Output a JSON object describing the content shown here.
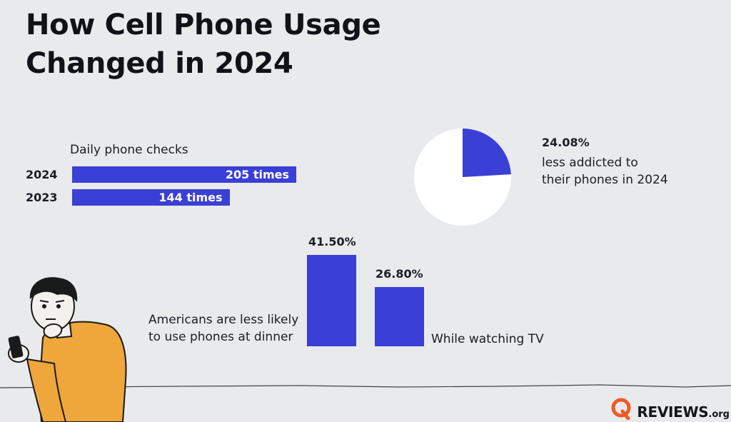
{
  "title_lines": [
    "How Cell Phone Usage",
    "Changed in 2024"
  ],
  "colors": {
    "accent": "#3a3fd6",
    "background": "#e9eaec",
    "figure_shirt": "#efa63a",
    "logo": "#ef5a24"
  },
  "phone_checks": {
    "label": "Daily phone checks",
    "rows": [
      {
        "year": "2024",
        "value": 205,
        "value_label": "205 times"
      },
      {
        "year": "2023",
        "value": 144,
        "value_label": "144 times"
      }
    ]
  },
  "addiction_pie": {
    "percent_label": "24.08%",
    "value": 24.08,
    "caption_lines": [
      "less addicted to",
      "their phones in 2024"
    ]
  },
  "usage_bars": {
    "caption_lines": [
      "Americans are less likely",
      "to use phones at dinner"
    ],
    "bars": [
      {
        "value": 41.5,
        "label": "41.50%"
      },
      {
        "value": 26.8,
        "label": "26.80%",
        "caption": "While watching TV"
      }
    ]
  },
  "logo": {
    "brand": "REVIEWS",
    "tld": ".org",
    "icon": "q-logo-icon"
  },
  "illustration": {
    "icon": "person-thinking-with-phone-icon"
  },
  "chart_data": [
    {
      "type": "bar",
      "orientation": "horizontal",
      "title": "Daily phone checks",
      "categories": [
        "2024",
        "2023"
      ],
      "values": [
        205,
        144
      ],
      "data_labels": [
        "205 times",
        "144 times"
      ]
    },
    {
      "type": "pie",
      "slices": [
        {
          "label": "24.08%",
          "value": 24.08
        },
        {
          "label": "",
          "value": 75.92
        }
      ]
    },
    {
      "type": "bar",
      "categories": [
        "",
        "While watching TV"
      ],
      "values": [
        41.5,
        26.8
      ],
      "data_labels": [
        "41.50%",
        "26.80%"
      ]
    }
  ]
}
